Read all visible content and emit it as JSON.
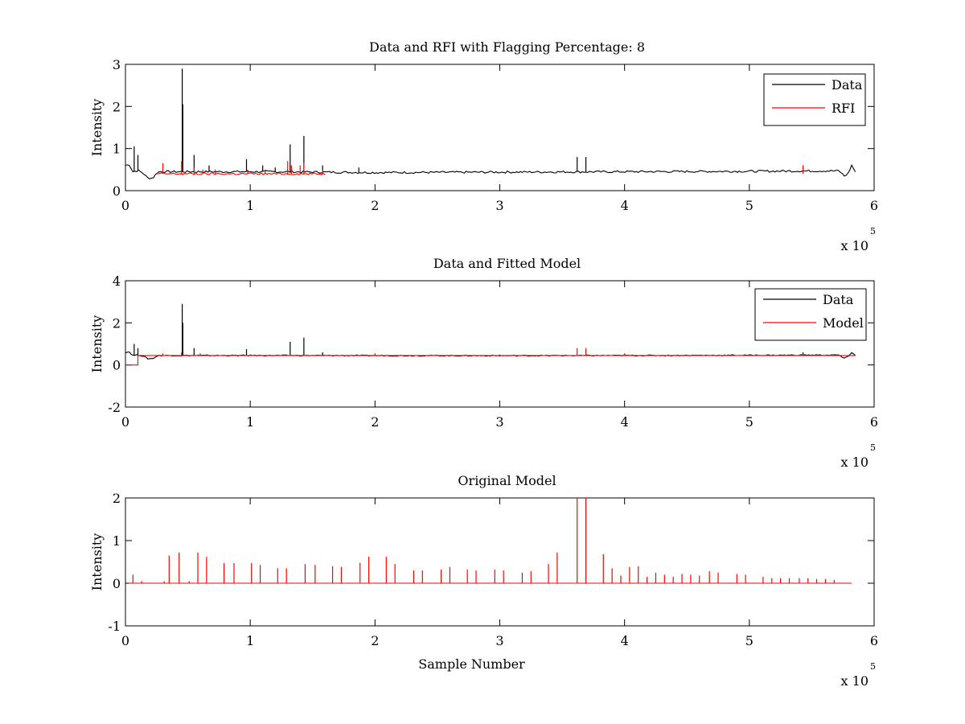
{
  "chart_data": [
    {
      "type": "line",
      "title": "Data and RFI with Flagging Percentage: 8",
      "xlabel": "",
      "ylabel": "Intensity",
      "xlim": [
        0,
        600000
      ],
      "ylim": [
        0,
        3
      ],
      "xticks": [
        "0",
        "1",
        "2",
        "3",
        "4",
        "5",
        "6"
      ],
      "yticks": [
        "0",
        "1",
        "2",
        "3"
      ],
      "x_exponent": "x 10",
      "x_exponent_power": "5",
      "legend_position": "top-right",
      "series": [
        {
          "name": "Data",
          "color": "#000000",
          "baseline": [
            [
              0,
              0.6
            ],
            [
              3000,
              0.62
            ],
            [
              6000,
              0.45
            ],
            [
              10000,
              0.48
            ],
            [
              14000,
              0.42
            ],
            [
              18000,
              0.3
            ],
            [
              22000,
              0.3
            ],
            [
              26000,
              0.45
            ],
            [
              35000,
              0.45
            ],
            [
              60000,
              0.45
            ],
            [
              120000,
              0.45
            ],
            [
              200000,
              0.43
            ],
            [
              300000,
              0.44
            ],
            [
              400000,
              0.45
            ],
            [
              500000,
              0.46
            ],
            [
              560000,
              0.47
            ],
            [
              572000,
              0.47
            ],
            [
              576000,
              0.35
            ],
            [
              579000,
              0.4
            ],
            [
              582000,
              0.6
            ],
            [
              585000,
              0.45
            ]
          ],
          "spikes": [
            [
              7000,
              1.05
            ],
            [
              10000,
              0.85
            ],
            [
              45500,
              2.9
            ],
            [
              46000,
              2.05
            ],
            [
              55000,
              0.85
            ],
            [
              67000,
              0.6
            ],
            [
              97000,
              0.75
            ],
            [
              110000,
              0.6
            ],
            [
              120000,
              0.55
            ],
            [
              132000,
              1.1
            ],
            [
              143000,
              1.3
            ],
            [
              158000,
              0.6
            ],
            [
              187000,
              0.55
            ],
            [
              362000,
              0.8
            ],
            [
              369000,
              0.8
            ],
            [
              543000,
              0.6
            ]
          ]
        },
        {
          "name": "RFI",
          "color": "#ff0000",
          "baseline": [
            [
              25000,
              0.4
            ],
            [
              160000,
              0.4
            ]
          ],
          "spikes": [
            [
              30000,
              0.65
            ],
            [
              45000,
              0.7
            ],
            [
              55000,
              0.55
            ],
            [
              62000,
              0.5
            ],
            [
              72000,
              0.5
            ],
            [
              98000,
              0.5
            ],
            [
              112000,
              0.5
            ],
            [
              130000,
              0.7
            ],
            [
              133000,
              0.6
            ],
            [
              140000,
              0.6
            ],
            [
              143000,
              0.65
            ],
            [
              158000,
              0.5
            ],
            [
              543000,
              0.6
            ]
          ]
        }
      ]
    },
    {
      "type": "line",
      "title": "Data and Fitted Model",
      "xlabel": "",
      "ylabel": "Intensity",
      "xlim": [
        0,
        600000
      ],
      "ylim": [
        -2,
        4
      ],
      "xticks": [
        "0",
        "1",
        "2",
        "3",
        "4",
        "5",
        "6"
      ],
      "yticks": [
        "-2",
        "0",
        "2",
        "4"
      ],
      "x_exponent": "x 10",
      "x_exponent_power": "5",
      "legend_position": "top-right",
      "series": [
        {
          "name": "Data",
          "color": "#000000",
          "baseline": [
            [
              0,
              0.6
            ],
            [
              3000,
              0.62
            ],
            [
              6000,
              0.45
            ],
            [
              10000,
              0.48
            ],
            [
              14000,
              0.42
            ],
            [
              18000,
              0.3
            ],
            [
              22000,
              0.3
            ],
            [
              26000,
              0.45
            ],
            [
              35000,
              0.45
            ],
            [
              120000,
              0.45
            ],
            [
              300000,
              0.44
            ],
            [
              500000,
              0.46
            ],
            [
              572000,
              0.47
            ],
            [
              576000,
              0.3
            ],
            [
              579000,
              0.4
            ],
            [
              582000,
              0.6
            ],
            [
              585000,
              0.45
            ]
          ],
          "spikes": [
            [
              7000,
              1.0
            ],
            [
              10000,
              0.8
            ],
            [
              45500,
              2.9
            ],
            [
              46000,
              2.0
            ],
            [
              55000,
              0.8
            ],
            [
              97000,
              0.75
            ],
            [
              132000,
              1.1
            ],
            [
              143000,
              1.3
            ],
            [
              158000,
              0.6
            ],
            [
              543000,
              0.6
            ]
          ]
        },
        {
          "name": "Model",
          "color": "#ff0000",
          "baseline": [
            [
              0,
              0
            ],
            [
              10000,
              0
            ],
            [
              10000,
              0.45
            ],
            [
              585000,
              0.45
            ]
          ],
          "spikes": [
            [
              30000,
              0.55
            ],
            [
              45000,
              0.6
            ],
            [
              60000,
              0.55
            ],
            [
              100000,
              0.5
            ],
            [
              200000,
              0.55
            ],
            [
              300000,
              0.5
            ],
            [
              362000,
              0.8
            ],
            [
              369000,
              0.8
            ],
            [
              400000,
              0.55
            ],
            [
              500000,
              0.5
            ]
          ]
        }
      ]
    },
    {
      "type": "line",
      "title": "Original Model",
      "xlabel": "Sample Number",
      "ylabel": "Intensity",
      "xlim": [
        0,
        600000
      ],
      "ylim": [
        -1,
        2
      ],
      "xticks": [
        "0",
        "1",
        "2",
        "3",
        "4",
        "5",
        "6"
      ],
      "yticks": [
        "-1",
        "0",
        "1",
        "2"
      ],
      "x_exponent": "x 10",
      "x_exponent_power": "5",
      "series": [
        {
          "color": "#ff0000",
          "baseline": [
            [
              3000,
              0
            ],
            [
              583000,
              0
            ]
          ],
          "spikes": [
            [
              6000,
              0.2
            ],
            [
              13000,
              0.05
            ],
            [
              31000,
              0.05
            ],
            [
              35000,
              0.65
            ],
            [
              43000,
              0.72
            ],
            [
              51000,
              0.05
            ],
            [
              58000,
              0.72
            ],
            [
              65000,
              0.62
            ],
            [
              79000,
              0.47
            ],
            [
              87000,
              0.47
            ],
            [
              101000,
              0.47
            ],
            [
              108000,
              0.43
            ],
            [
              122000,
              0.35
            ],
            [
              129000,
              0.35
            ],
            [
              144000,
              0.45
            ],
            [
              152000,
              0.43
            ],
            [
              166000,
              0.4
            ],
            [
              173000,
              0.38
            ],
            [
              188000,
              0.48
            ],
            [
              195000,
              0.62
            ],
            [
              209000,
              0.62
            ],
            [
              216000,
              0.45
            ],
            [
              231000,
              0.3
            ],
            [
              238000,
              0.3
            ],
            [
              253000,
              0.32
            ],
            [
              260000,
              0.38
            ],
            [
              274000,
              0.32
            ],
            [
              281000,
              0.3
            ],
            [
              296000,
              0.32
            ],
            [
              303000,
              0.3
            ],
            [
              318000,
              0.25
            ],
            [
              325000,
              0.28
            ],
            [
              339000,
              0.45
            ],
            [
              346000,
              0.72
            ],
            [
              362000,
              2.0
            ],
            [
              369000,
              2.0
            ],
            [
              383000,
              0.68
            ],
            [
              390000,
              0.35
            ],
            [
              397000,
              0.18
            ],
            [
              404000,
              0.38
            ],
            [
              411000,
              0.4
            ],
            [
              418000,
              0.15
            ],
            [
              425000,
              0.25
            ],
            [
              432000,
              0.2
            ],
            [
              439000,
              0.15
            ],
            [
              446000,
              0.22
            ],
            [
              453000,
              0.2
            ],
            [
              460000,
              0.18
            ],
            [
              468000,
              0.28
            ],
            [
              475000,
              0.25
            ],
            [
              490000,
              0.22
            ],
            [
              497000,
              0.2
            ],
            [
              511000,
              0.15
            ],
            [
              518000,
              0.12
            ],
            [
              525000,
              0.12
            ],
            [
              532000,
              0.12
            ],
            [
              540000,
              0.12
            ],
            [
              547000,
              0.12
            ],
            [
              554000,
              0.1
            ],
            [
              561000,
              0.1
            ],
            [
              568000,
              0.08
            ]
          ]
        }
      ]
    }
  ]
}
